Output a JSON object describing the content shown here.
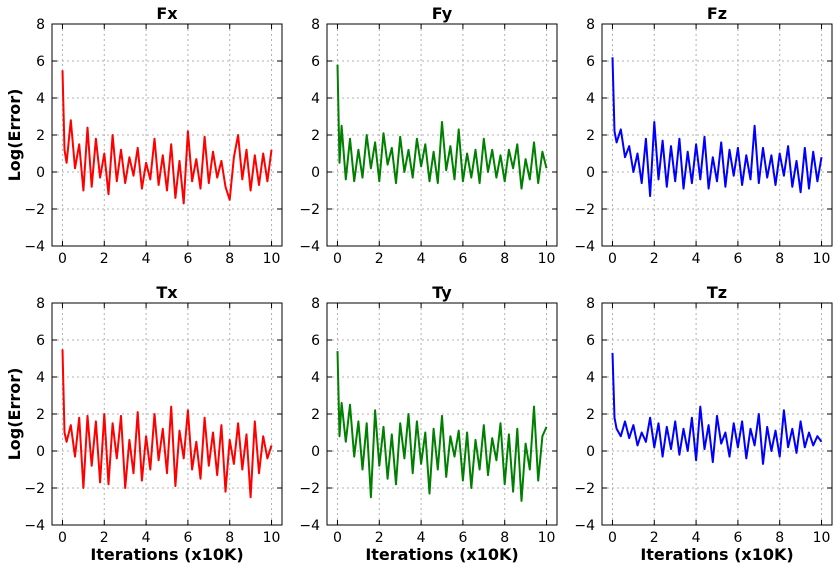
{
  "chart_data": [
    {
      "type": "line",
      "title": "Fx",
      "ylabel": "Log(Error)",
      "xlabel": "",
      "xlim": [
        -0.5,
        10.5
      ],
      "ylim": [
        -4,
        8
      ],
      "xticks": [
        0,
        2,
        4,
        6,
        8,
        10
      ],
      "yticks": [
        -4,
        -2,
        0,
        2,
        4,
        6,
        8
      ],
      "grid": true,
      "color": "#ff0000",
      "series": [
        {
          "x": [
            0,
            0.1,
            0.2,
            0.4,
            0.6,
            0.8,
            1.0,
            1.2,
            1.4,
            1.6,
            1.8,
            2.0,
            2.2,
            2.4,
            2.6,
            2.8,
            3.0,
            3.2,
            3.4,
            3.6,
            3.8,
            4.0,
            4.2,
            4.4,
            4.6,
            4.8,
            5.0,
            5.2,
            5.4,
            5.6,
            5.8,
            6.0,
            6.2,
            6.4,
            6.6,
            6.8,
            7.0,
            7.2,
            7.4,
            7.6,
            7.8,
            8.0,
            8.2,
            8.4,
            8.6,
            8.8,
            9.0,
            9.2,
            9.4,
            9.6,
            9.8,
            10.0
          ],
          "y": [
            5.5,
            1.2,
            0.5,
            2.8,
            0.2,
            1.5,
            -1.0,
            2.4,
            -0.8,
            1.8,
            -0.3,
            1.0,
            -1.2,
            2.0,
            -0.5,
            1.2,
            -0.6,
            0.8,
            -0.2,
            1.3,
            -0.9,
            0.5,
            -0.4,
            1.8,
            -0.7,
            0.9,
            -1.0,
            1.5,
            -1.4,
            0.6,
            -1.7,
            2.2,
            -0.5,
            0.7,
            -0.9,
            1.9,
            -0.6,
            1.1,
            -0.3,
            0.6,
            -0.8,
            -1.5,
            0.8,
            2.0,
            -0.4,
            1.2,
            -1.0,
            0.9,
            -0.7,
            1.0,
            -0.5,
            1.2
          ]
        }
      ]
    },
    {
      "type": "line",
      "title": "Fy",
      "ylabel": "",
      "xlabel": "",
      "xlim": [
        -0.5,
        10.5
      ],
      "ylim": [
        -4,
        8
      ],
      "xticks": [
        0,
        2,
        4,
        6,
        8,
        10
      ],
      "yticks": [
        -4,
        -2,
        0,
        2,
        4,
        6,
        8
      ],
      "grid": true,
      "color": "#008000",
      "series": [
        {
          "x": [
            0,
            0.1,
            0.2,
            0.4,
            0.6,
            0.8,
            1.0,
            1.2,
            1.4,
            1.6,
            1.8,
            2.0,
            2.2,
            2.4,
            2.6,
            2.8,
            3.0,
            3.2,
            3.4,
            3.6,
            3.8,
            4.0,
            4.2,
            4.4,
            4.6,
            4.8,
            5.0,
            5.2,
            5.4,
            5.6,
            5.8,
            6.0,
            6.2,
            6.4,
            6.6,
            6.8,
            7.0,
            7.2,
            7.4,
            7.6,
            7.8,
            8.0,
            8.2,
            8.4,
            8.6,
            8.8,
            9.0,
            9.2,
            9.4,
            9.6,
            9.8,
            10.0
          ],
          "y": [
            5.8,
            0.5,
            2.5,
            -0.4,
            1.8,
            -0.5,
            1.2,
            -0.3,
            2.0,
            0.2,
            1.6,
            -0.5,
            2.1,
            0.4,
            1.3,
            -0.6,
            1.9,
            0.0,
            1.2,
            -0.3,
            1.8,
            0.3,
            1.5,
            -0.5,
            1.1,
            -0.6,
            2.7,
            0.1,
            1.4,
            -0.4,
            2.3,
            -0.5,
            1.0,
            -0.3,
            1.2,
            -0.6,
            1.8,
            0.0,
            1.2,
            -0.3,
            0.9,
            -0.5,
            1.2,
            0.2,
            1.5,
            -0.9,
            0.7,
            -0.4,
            1.6,
            -0.6,
            1.1,
            0.2
          ]
        }
      ]
    },
    {
      "type": "line",
      "title": "Fz",
      "ylabel": "",
      "xlabel": "",
      "xlim": [
        -0.5,
        10.5
      ],
      "ylim": [
        -4,
        8
      ],
      "xticks": [
        0,
        2,
        4,
        6,
        8,
        10
      ],
      "yticks": [
        -4,
        -2,
        0,
        2,
        4,
        6,
        8
      ],
      "grid": true,
      "color": "#0000ff",
      "series": [
        {
          "x": [
            0,
            0.1,
            0.2,
            0.4,
            0.6,
            0.8,
            1.0,
            1.2,
            1.4,
            1.6,
            1.8,
            2.0,
            2.2,
            2.4,
            2.6,
            2.8,
            3.0,
            3.2,
            3.4,
            3.6,
            3.8,
            4.0,
            4.2,
            4.4,
            4.6,
            4.8,
            5.0,
            5.2,
            5.4,
            5.6,
            5.8,
            6.0,
            6.2,
            6.4,
            6.6,
            6.8,
            7.0,
            7.2,
            7.4,
            7.6,
            7.8,
            8.0,
            8.2,
            8.4,
            8.6,
            8.8,
            9.0,
            9.2,
            9.4,
            9.6,
            9.8,
            10.0
          ],
          "y": [
            6.2,
            2.2,
            1.6,
            2.3,
            0.8,
            1.4,
            0.0,
            1.0,
            -0.6,
            1.8,
            -1.3,
            2.7,
            -0.4,
            1.7,
            -0.8,
            1.4,
            -0.5,
            1.8,
            -0.9,
            1.1,
            -0.6,
            1.5,
            -0.4,
            1.9,
            -0.9,
            0.8,
            -0.5,
            1.6,
            -0.8,
            1.2,
            -0.2,
            1.3,
            -0.7,
            0.9,
            -0.4,
            2.5,
            -0.6,
            1.3,
            -0.3,
            0.9,
            -0.7,
            1.0,
            -0.2,
            1.4,
            -0.8,
            0.6,
            -1.1,
            1.3,
            -0.9,
            1.1,
            -0.5,
            0.8
          ]
        }
      ]
    },
    {
      "type": "line",
      "title": "Tx",
      "ylabel": "Log(Error)",
      "xlabel": "Iterations (x10K)",
      "xlim": [
        -0.5,
        10.5
      ],
      "ylim": [
        -4,
        8
      ],
      "xticks": [
        0,
        2,
        4,
        6,
        8,
        10
      ],
      "yticks": [
        -4,
        -2,
        0,
        2,
        4,
        6,
        8
      ],
      "grid": true,
      "color": "#ff0000",
      "series": [
        {
          "x": [
            0,
            0.1,
            0.2,
            0.4,
            0.6,
            0.8,
            1.0,
            1.2,
            1.4,
            1.6,
            1.8,
            2.0,
            2.2,
            2.4,
            2.6,
            2.8,
            3.0,
            3.2,
            3.4,
            3.6,
            3.8,
            4.0,
            4.2,
            4.4,
            4.6,
            4.8,
            5.0,
            5.2,
            5.4,
            5.6,
            5.8,
            6.0,
            6.2,
            6.4,
            6.6,
            6.8,
            7.0,
            7.2,
            7.4,
            7.6,
            7.8,
            8.0,
            8.2,
            8.4,
            8.6,
            8.8,
            9.0,
            9.2,
            9.4,
            9.6,
            9.8,
            10.0
          ],
          "y": [
            5.5,
            1.0,
            0.5,
            1.4,
            -0.3,
            1.8,
            -2.0,
            1.9,
            -0.8,
            1.6,
            -1.7,
            2.0,
            -1.8,
            1.5,
            -0.4,
            1.9,
            -2.0,
            0.6,
            -1.2,
            2.1,
            -1.6,
            0.8,
            -1.0,
            2.0,
            -0.5,
            1.2,
            -1.2,
            2.4,
            -1.9,
            1.1,
            -0.4,
            2.2,
            -1.0,
            0.5,
            -1.5,
            1.8,
            -0.8,
            1.0,
            -1.3,
            1.4,
            -2.2,
            0.6,
            -0.7,
            1.5,
            -1.0,
            0.9,
            -2.5,
            1.6,
            -1.2,
            0.8,
            -0.4,
            0.3
          ]
        }
      ]
    },
    {
      "type": "line",
      "title": "Ty",
      "ylabel": "",
      "xlabel": "Iterations (x10K)",
      "xlim": [
        -0.5,
        10.5
      ],
      "ylim": [
        -4,
        8
      ],
      "xticks": [
        0,
        2,
        4,
        6,
        8,
        10
      ],
      "yticks": [
        -4,
        -2,
        0,
        2,
        4,
        6,
        8
      ],
      "grid": true,
      "color": "#008000",
      "series": [
        {
          "x": [
            0,
            0.1,
            0.2,
            0.4,
            0.6,
            0.8,
            1.0,
            1.2,
            1.4,
            1.6,
            1.8,
            2.0,
            2.2,
            2.4,
            2.6,
            2.8,
            3.0,
            3.2,
            3.4,
            3.6,
            3.8,
            4.0,
            4.2,
            4.4,
            4.6,
            4.8,
            5.0,
            5.2,
            5.4,
            5.6,
            5.8,
            6.0,
            6.2,
            6.4,
            6.6,
            6.8,
            7.0,
            7.2,
            7.4,
            7.6,
            7.8,
            8.0,
            8.2,
            8.4,
            8.6,
            8.8,
            9.0,
            9.2,
            9.4,
            9.6,
            9.8,
            10.0
          ],
          "y": [
            5.4,
            0.8,
            2.6,
            0.5,
            2.5,
            -0.3,
            1.6,
            -1.0,
            1.5,
            -2.5,
            2.2,
            -0.8,
            1.3,
            -1.5,
            0.9,
            -1.8,
            1.5,
            -0.4,
            2.0,
            -1.2,
            1.6,
            -0.7,
            1.0,
            -2.3,
            1.2,
            -1.0,
            1.9,
            -1.4,
            0.8,
            -0.3,
            1.1,
            -1.6,
            1.0,
            -2.0,
            0.6,
            -1.0,
            1.4,
            -1.3,
            0.7,
            -0.5,
            1.5,
            -1.8,
            0.9,
            -2.2,
            1.2,
            -2.7,
            0.4,
            -1.0,
            2.4,
            -1.6,
            0.8,
            1.3
          ]
        }
      ]
    },
    {
      "type": "line",
      "title": "Tz",
      "ylabel": "",
      "xlabel": "Iterations (x10K)",
      "xlim": [
        -0.5,
        10.5
      ],
      "ylim": [
        -4,
        8
      ],
      "xticks": [
        0,
        2,
        4,
        6,
        8,
        10
      ],
      "yticks": [
        -4,
        -2,
        0,
        2,
        4,
        6,
        8
      ],
      "grid": true,
      "color": "#0000ff",
      "series": [
        {
          "x": [
            0,
            0.1,
            0.2,
            0.4,
            0.6,
            0.8,
            1.0,
            1.2,
            1.4,
            1.6,
            1.8,
            2.0,
            2.2,
            2.4,
            2.6,
            2.8,
            3.0,
            3.2,
            3.4,
            3.6,
            3.8,
            4.0,
            4.2,
            4.4,
            4.6,
            4.8,
            5.0,
            5.2,
            5.4,
            5.6,
            5.8,
            6.0,
            6.2,
            6.4,
            6.6,
            6.8,
            7.0,
            7.2,
            7.4,
            7.6,
            7.8,
            8.0,
            8.2,
            8.4,
            8.6,
            8.8,
            9.0,
            9.2,
            9.4,
            9.6,
            9.8,
            10.0
          ],
          "y": [
            5.3,
            1.8,
            1.2,
            0.8,
            1.6,
            0.7,
            1.4,
            0.3,
            1.0,
            0.5,
            1.8,
            0.2,
            1.5,
            -0.3,
            1.3,
            0.1,
            1.6,
            -0.2,
            1.2,
            0.0,
            1.8,
            -0.5,
            2.4,
            0.1,
            1.4,
            -0.6,
            1.9,
            0.4,
            1.0,
            -0.3,
            1.5,
            0.2,
            1.6,
            -0.4,
            1.2,
            0.3,
            2.0,
            -0.7,
            1.3,
            0.0,
            1.1,
            -0.3,
            2.2,
            0.2,
            1.2,
            -0.1,
            1.6,
            0.2,
            1.0,
            0.3,
            0.8,
            0.5
          ]
        }
      ]
    }
  ]
}
